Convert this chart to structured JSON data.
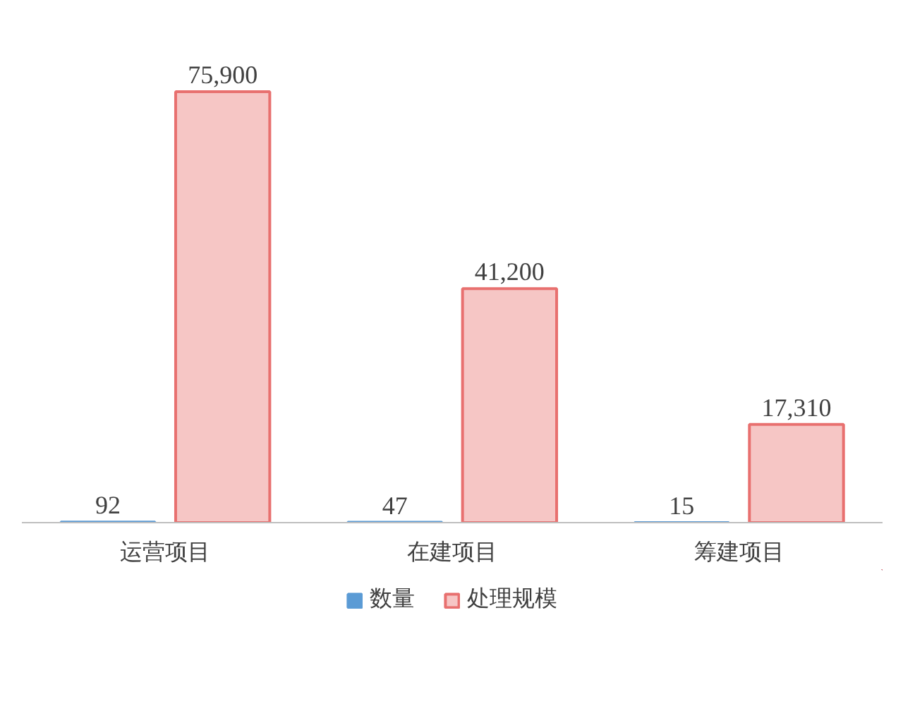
{
  "chart_data": {
    "type": "bar",
    "categories": [
      "运营项目",
      "在建项目",
      "筹建项目"
    ],
    "series": [
      {
        "name": "数量",
        "color": "#5b9bd5",
        "values": [
          92,
          47,
          15
        ]
      },
      {
        "name": "处理规模",
        "color": "#e8706f",
        "values": [
          75900,
          41200,
          17310
        ],
        "value_labels": [
          "75,900",
          "41,200",
          "17,310"
        ]
      }
    ],
    "tick_labels": "x",
    "data_labels": true,
    "legend": "bottom"
  }
}
